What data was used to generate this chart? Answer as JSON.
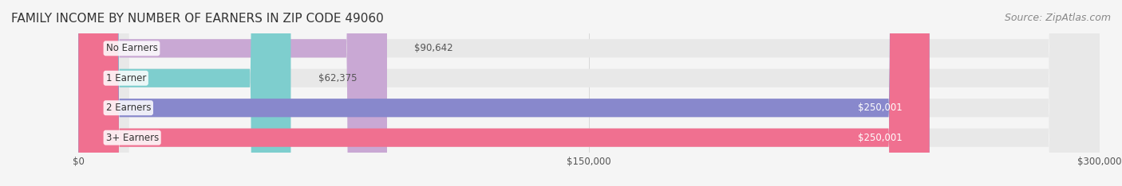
{
  "title": "FAMILY INCOME BY NUMBER OF EARNERS IN ZIP CODE 49060",
  "source": "Source: ZipAtlas.com",
  "categories": [
    "No Earners",
    "1 Earner",
    "2 Earners",
    "3+ Earners"
  ],
  "values": [
    90642,
    62375,
    250001,
    250001
  ],
  "bar_colors": [
    "#c9a8d4",
    "#7ecece",
    "#8888cc",
    "#f07090"
  ],
  "bar_bg_color": "#eeeeee",
  "label_colors": [
    "#555555",
    "#555555",
    "#ffffff",
    "#ffffff"
  ],
  "x_max": 300000,
  "x_ticks": [
    0,
    150000,
    300000
  ],
  "x_tick_labels": [
    "$0",
    "$150,000",
    "$300,000"
  ],
  "value_labels": [
    "$90,642",
    "$62,375",
    "$250,001",
    "$250,001"
  ],
  "bg_color": "#f5f5f5",
  "title_fontsize": 11,
  "source_fontsize": 9
}
